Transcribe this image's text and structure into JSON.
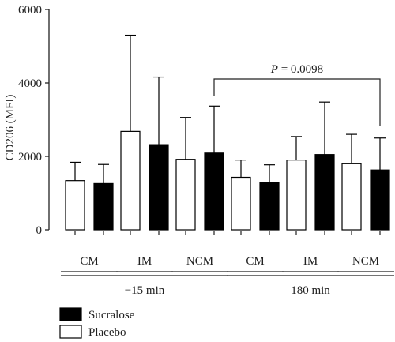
{
  "chart_data": {
    "type": "bar",
    "ylabel": "CD206 (MFI)",
    "ylim": [
      0,
      6000
    ],
    "yticks": [
      0,
      2000,
      4000,
      6000
    ],
    "groups": [
      {
        "label": "−15 min",
        "categories": [
          "CM",
          "IM",
          "NCM"
        ]
      },
      {
        "label": "180 min",
        "categories": [
          "CM",
          "IM",
          "NCM"
        ]
      }
    ],
    "categories": [
      "CM",
      "IM",
      "NCM",
      "CM",
      "IM",
      "NCM"
    ],
    "series": [
      {
        "name": "Placebo",
        "color": "#ffffff",
        "values": [
          1340,
          2680,
          1920,
          1430,
          1900,
          1800
        ],
        "error_upper": [
          1840,
          5300,
          3060,
          1900,
          2540,
          2600
        ]
      },
      {
        "name": "Sucralose",
        "color": "#000000",
        "values": [
          1260,
          2320,
          2090,
          1280,
          2050,
          1630
        ],
        "error_upper": [
          1780,
          4160,
          3370,
          1770,
          3480,
          2500
        ]
      }
    ],
    "legend": {
      "placement": "bottom-left",
      "order": [
        "Sucralose",
        "Placebo"
      ]
    },
    "annotation": {
      "italic": "P",
      "text": " = 0.0098",
      "from_category_index": 2,
      "to_category_index": 5,
      "series": "Sucralose"
    }
  }
}
